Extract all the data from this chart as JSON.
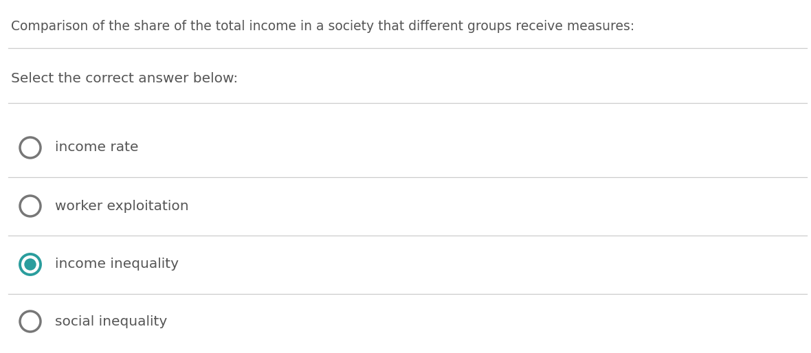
{
  "background_color": "#ffffff",
  "question_text": "Comparison of the share of the total income in a society that different groups receive measures:",
  "prompt_text": "Select the correct answer below:",
  "options": [
    "income rate",
    "worker exploitation",
    "income inequality",
    "social inequality"
  ],
  "correct_index": 2,
  "divider_color": "#cccccc",
  "text_color": "#555555",
  "circle_color": "#777777",
  "selected_fill_color": "#2a9d9d",
  "selected_border_color": "#2a9d9d",
  "question_fontsize": 13.5,
  "option_fontsize": 14.5,
  "prompt_fontsize": 14.5,
  "fig_width": 11.8,
  "fig_height": 5.14,
  "dpi": 100
}
